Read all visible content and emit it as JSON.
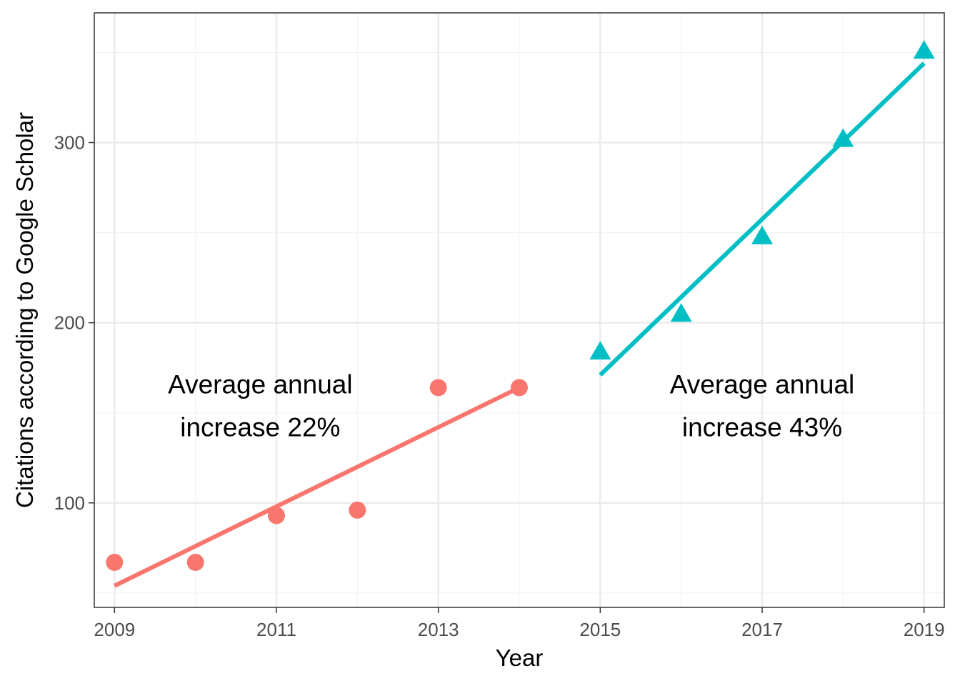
{
  "chart_data": {
    "type": "scatter",
    "title": "",
    "xlabel": "Year",
    "ylabel": "Citations according to Google Scholar",
    "xlim": [
      2008.75,
      2019.25
    ],
    "ylim": [
      42,
      372
    ],
    "x_ticks": [
      2009,
      2011,
      2013,
      2015,
      2017,
      2019
    ],
    "x_tick_labels": [
      "2009",
      "2011",
      "2013",
      "2015",
      "2017",
      "2019"
    ],
    "y_ticks": [
      100,
      200,
      300
    ],
    "y_tick_labels": [
      "100",
      "200",
      "300"
    ],
    "y_minor_ticks": [
      50,
      150,
      250,
      350
    ],
    "x_minor_ticks": [
      2010,
      2012,
      2014,
      2016,
      2018
    ],
    "grid": true,
    "legend": "none",
    "series": [
      {
        "marker": "circle",
        "color": "#F8766D",
        "points": [
          {
            "x": 2009,
            "y": 67
          },
          {
            "x": 2010,
            "y": 67
          },
          {
            "x": 2011,
            "y": 93
          },
          {
            "x": 2012,
            "y": 96
          },
          {
            "x": 2013,
            "y": 164
          },
          {
            "x": 2014,
            "y": 164
          }
        ],
        "trend": {
          "x": [
            2009,
            2014
          ],
          "y": [
            54,
            164
          ]
        }
      },
      {
        "marker": "triangle",
        "color": "#00BFC4",
        "points": [
          {
            "x": 2015,
            "y": 183
          },
          {
            "x": 2016,
            "y": 204
          },
          {
            "x": 2017,
            "y": 247
          },
          {
            "x": 2018,
            "y": 301
          },
          {
            "x": 2019,
            "y": 350
          }
        ],
        "trend": {
          "x": [
            2015,
            2019
          ],
          "y": [
            171,
            344
          ]
        }
      }
    ],
    "annotations": [
      {
        "lines": [
          "Average annual",
          "increase 22%"
        ],
        "x": 2010.8,
        "y": 154
      },
      {
        "lines": [
          "Average annual",
          "increase 43%"
        ],
        "x": 2017.0,
        "y": 154
      }
    ]
  }
}
